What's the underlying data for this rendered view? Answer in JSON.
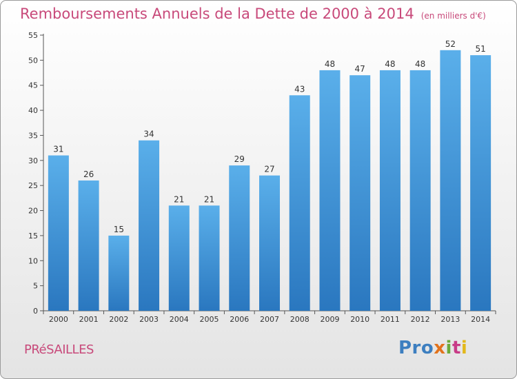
{
  "chart_data": {
    "type": "bar",
    "title": "Remboursements Annuels de la Dette de 2000 à 2014",
    "subtitle": "(en milliers d'€)",
    "categories": [
      "2000",
      "2001",
      "2002",
      "2003",
      "2004",
      "2005",
      "2006",
      "2007",
      "2008",
      "2009",
      "2010",
      "2011",
      "2012",
      "2013",
      "2014"
    ],
    "values": [
      31,
      26,
      15,
      34,
      21,
      21,
      29,
      27,
      43,
      48,
      47,
      48,
      48,
      52,
      51
    ],
    "xlabel": "",
    "ylabel": "",
    "ylim": [
      0,
      55
    ],
    "yticks": [
      0,
      5,
      10,
      15,
      20,
      25,
      30,
      35,
      40,
      45,
      50,
      55
    ],
    "grid": false,
    "bar_color": "#3c95d8"
  },
  "footer": {
    "commune": "PRéSAILLES",
    "logo": {
      "p1": "Pro",
      "p2": "x",
      "p3": "i",
      "p4": "t",
      "p5": "i"
    }
  },
  "colors": {
    "title": "#c8497a",
    "commune": "#c8497a"
  }
}
